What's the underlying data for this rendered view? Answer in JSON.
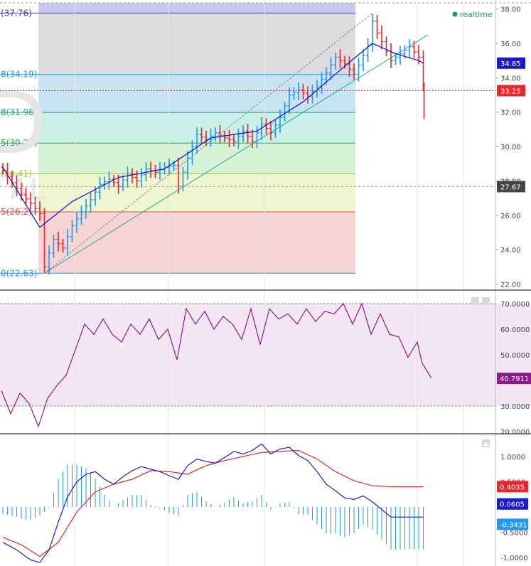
{
  "realtime_label": "realtime",
  "watermark_letters": [
    "D",
    "AL"
  ],
  "price_axis": {
    "ticks": [
      "38.00",
      "36.00",
      "34.00",
      "32.00",
      "30.00",
      "28.00",
      "26.00",
      "24.00",
      "22.00"
    ],
    "badges": [
      {
        "text": "34.85",
        "color": "#1a1acd"
      },
      {
        "text": "33.25",
        "color": "#e8262b"
      },
      {
        "text": "27.67",
        "color": "#444444"
      }
    ]
  },
  "fib_labels": [
    "(37.76)",
    "8(34.19)",
    "8(31.98)",
    "5(30.20)",
    "(28.41)",
    "5(26.2)",
    "0(22.63)"
  ],
  "rsi_axis": {
    "ticks": [
      "70.0000",
      "60.0000",
      "50.0000",
      "40.0000",
      "30.0000",
      "20.0000"
    ],
    "badge": "40.7911"
  },
  "macd_axis": {
    "ticks": [
      "1.0000",
      "0.5000",
      "0.0000",
      "-0.5000",
      "-1.0000"
    ],
    "badges": [
      {
        "text": "0.4035",
        "color": "#e8262b"
      },
      {
        "text": "0.0605",
        "color": "#1a1acd"
      },
      {
        "text": "-0.3431",
        "color": "#2196f3"
      }
    ]
  },
  "colors": {
    "up_bar": "#2196f3",
    "down_bar": "#e8262b",
    "ma_line": "#1a1acd",
    "trend_line": "#26a69a",
    "rsi_line": "#8b1a8b",
    "rsi_band": "#f3e6f3",
    "macd_line": "#1a1acd",
    "signal_line": "#e8262b",
    "histogram": "#2196f3"
  },
  "chart_data": [
    {
      "type": "ohlc",
      "series_points": 92,
      "anchors_close": [
        [
          0,
          28.6
        ],
        [
          2,
          27.9
        ],
        [
          4,
          27.2
        ],
        [
          6,
          26.7
        ],
        [
          8,
          26.1
        ],
        [
          9,
          23.0
        ],
        [
          11,
          24.6
        ],
        [
          13,
          24.1
        ],
        [
          15,
          25.4
        ],
        [
          17,
          26.2
        ],
        [
          19,
          26.9
        ],
        [
          21,
          27.8
        ],
        [
          23,
          28.1
        ],
        [
          25,
          27.7
        ],
        [
          27,
          28.4
        ],
        [
          29,
          28.0
        ],
        [
          31,
          28.7
        ],
        [
          33,
          28.5
        ],
        [
          35,
          28.8
        ],
        [
          37,
          28.9
        ],
        [
          38,
          27.7
        ],
        [
          40,
          29.3
        ],
        [
          42,
          30.7
        ],
        [
          44,
          30.4
        ],
        [
          46,
          30.8
        ],
        [
          48,
          30.5
        ],
        [
          50,
          30.3
        ],
        [
          52,
          30.9
        ],
        [
          54,
          30.3
        ],
        [
          56,
          31.3
        ],
        [
          58,
          30.8
        ],
        [
          60,
          31.7
        ],
        [
          62,
          33.0
        ],
        [
          64,
          33.3
        ],
        [
          66,
          32.9
        ],
        [
          68,
          33.5
        ],
        [
          70,
          34.3
        ],
        [
          72,
          35.2
        ],
        [
          74,
          34.8
        ],
        [
          76,
          34.2
        ],
        [
          78,
          35.3
        ],
        [
          79,
          35.9
        ],
        [
          80,
          37.3
        ],
        [
          81,
          36.6
        ],
        [
          82,
          36.1
        ],
        [
          84,
          35.0
        ],
        [
          86,
          35.4
        ],
        [
          88,
          35.8
        ],
        [
          90,
          35.2
        ],
        [
          91,
          33.6
        ]
      ],
      "moving_average": [
        [
          0,
          28.8
        ],
        [
          8,
          25.3
        ],
        [
          15,
          26.8
        ],
        [
          25,
          28.2
        ],
        [
          35,
          28.7
        ],
        [
          45,
          30.5
        ],
        [
          55,
          30.9
        ],
        [
          65,
          32.6
        ],
        [
          75,
          34.9
        ],
        [
          80,
          36.0
        ],
        [
          85,
          35.4
        ],
        [
          90,
          35.0
        ],
        [
          91,
          34.85
        ]
      ],
      "fibonacci": {
        "high": 37.76,
        "low": 22.63,
        "levels": [
          37.76,
          34.19,
          31.98,
          30.2,
          28.41,
          26.2,
          22.63
        ]
      },
      "trend_line": [
        [
          9,
          22.63
        ],
        [
          92,
          36.5
        ]
      ],
      "dashed_diagonal": [
        [
          9,
          22.63
        ],
        [
          80,
          37.76
        ]
      ],
      "ylim": [
        21.8,
        38.4
      ],
      "last_price": 33.25,
      "cursor_price": 27.67,
      "ma_last": 34.85
    },
    {
      "type": "line",
      "name": "",
      "anchors": [
        [
          0,
          36
        ],
        [
          2,
          27
        ],
        [
          4,
          35
        ],
        [
          6,
          31
        ],
        [
          8,
          22
        ],
        [
          10,
          33
        ],
        [
          12,
          38
        ],
        [
          14,
          42
        ],
        [
          16,
          52
        ],
        [
          18,
          62
        ],
        [
          20,
          58
        ],
        [
          22,
          64
        ],
        [
          24,
          58
        ],
        [
          26,
          55
        ],
        [
          28,
          62
        ],
        [
          30,
          58
        ],
        [
          32,
          64
        ],
        [
          34,
          56
        ],
        [
          36,
          60
        ],
        [
          38,
          48
        ],
        [
          40,
          68
        ],
        [
          42,
          62
        ],
        [
          44,
          67
        ],
        [
          46,
          60
        ],
        [
          48,
          65
        ],
        [
          50,
          62
        ],
        [
          52,
          56
        ],
        [
          54,
          68
        ],
        [
          56,
          54
        ],
        [
          58,
          68
        ],
        [
          60,
          64
        ],
        [
          62,
          66
        ],
        [
          64,
          62
        ],
        [
          66,
          68
        ],
        [
          68,
          63
        ],
        [
          70,
          67
        ],
        [
          72,
          66
        ],
        [
          74,
          70
        ],
        [
          76,
          62
        ],
        [
          78,
          70
        ],
        [
          80,
          58
        ],
        [
          82,
          66
        ],
        [
          84,
          58
        ],
        [
          86,
          57
        ],
        [
          88,
          49
        ],
        [
          90,
          55
        ],
        [
          91,
          47
        ],
        [
          93,
          41
        ]
      ],
      "ylim": [
        19,
        74
      ],
      "guides": [
        70,
        30
      ],
      "last_value": 40.7911
    },
    {
      "type": "macd",
      "macd_anchors": [
        [
          0,
          -0.7
        ],
        [
          3,
          -0.85
        ],
        [
          6,
          -1.05
        ],
        [
          8,
          -1.1
        ],
        [
          10,
          -0.85
        ],
        [
          12,
          -0.3
        ],
        [
          14,
          0.2
        ],
        [
          16,
          0.5
        ],
        [
          18,
          0.65
        ],
        [
          20,
          0.7
        ],
        [
          22,
          0.55
        ],
        [
          24,
          0.45
        ],
        [
          26,
          0.6
        ],
        [
          28,
          0.72
        ],
        [
          30,
          0.8
        ],
        [
          32,
          0.75
        ],
        [
          34,
          0.7
        ],
        [
          36,
          0.62
        ],
        [
          38,
          0.55
        ],
        [
          40,
          0.82
        ],
        [
          42,
          0.95
        ],
        [
          44,
          0.9
        ],
        [
          46,
          0.87
        ],
        [
          48,
          0.98
        ],
        [
          50,
          1.1
        ],
        [
          52,
          1.05
        ],
        [
          54,
          1.12
        ],
        [
          56,
          1.25
        ],
        [
          58,
          1.05
        ],
        [
          60,
          1.15
        ],
        [
          62,
          1.18
        ],
        [
          64,
          1.02
        ],
        [
          66,
          0.92
        ],
        [
          68,
          0.7
        ],
        [
          70,
          0.45
        ],
        [
          72,
          0.32
        ],
        [
          74,
          0.18
        ],
        [
          76,
          0.15
        ],
        [
          78,
          0.22
        ],
        [
          80,
          0.1
        ],
        [
          82,
          -0.05
        ],
        [
          84,
          -0.2
        ]
      ],
      "signal_anchors": [
        [
          0,
          -0.6
        ],
        [
          4,
          -0.75
        ],
        [
          8,
          -0.98
        ],
        [
          12,
          -0.7
        ],
        [
          16,
          -0.1
        ],
        [
          20,
          0.3
        ],
        [
          24,
          0.45
        ],
        [
          28,
          0.55
        ],
        [
          32,
          0.72
        ],
        [
          36,
          0.7
        ],
        [
          40,
          0.65
        ],
        [
          44,
          0.82
        ],
        [
          48,
          0.92
        ],
        [
          52,
          1.0
        ],
        [
          56,
          1.08
        ],
        [
          60,
          1.1
        ],
        [
          64,
          1.12
        ],
        [
          68,
          0.95
        ],
        [
          72,
          0.7
        ],
        [
          76,
          0.52
        ],
        [
          80,
          0.42
        ],
        [
          84,
          0.4
        ]
      ],
      "ylim": [
        -1.2,
        1.55
      ],
      "last_macd": 0.0605,
      "last_signal": 0.4035,
      "last_histogram": -0.3431
    }
  ]
}
